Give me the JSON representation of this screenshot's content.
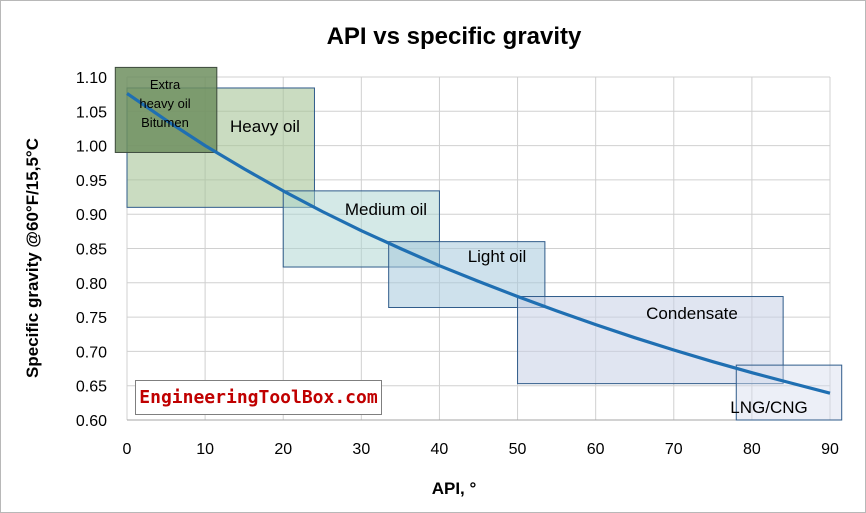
{
  "chart_data": {
    "type": "line",
    "title": "API vs specific gravity",
    "xlabel": "API, °",
    "ylabel": "Specific gravity @60°F/15,5°C",
    "xlim": [
      0,
      90
    ],
    "ylim": [
      0.6,
      1.1
    ],
    "xticks": [
      "0",
      "10",
      "20",
      "30",
      "40",
      "50",
      "60",
      "70",
      "80",
      "90"
    ],
    "yticks": [
      "0.60",
      "0.65",
      "0.70",
      "0.75",
      "0.80",
      "0.85",
      "0.90",
      "0.95",
      "1.00",
      "1.05",
      "1.10"
    ],
    "grid": true,
    "series": [
      {
        "x": [
          0,
          5,
          10,
          15,
          20,
          25,
          30,
          35,
          40,
          45,
          50,
          55,
          60,
          65,
          70,
          75,
          80,
          85,
          90
        ],
        "y": [
          1.076,
          1.037,
          1.0,
          0.966,
          0.934,
          0.904,
          0.876,
          0.85,
          0.825,
          0.802,
          0.78,
          0.759,
          0.739,
          0.72,
          0.702,
          0.685,
          0.669,
          0.654,
          0.639
        ]
      }
    ],
    "regions": [
      {
        "label": "Extra heavy oil Bitumen",
        "label_lines": [
          "Extra",
          "heavy oil",
          "Bitumen"
        ],
        "x": [
          -1.5,
          11.5
        ],
        "y": [
          0.99,
          1.114
        ]
      },
      {
        "label": "Heavy oil",
        "x": [
          0,
          24
        ],
        "y": [
          0.91,
          1.084
        ]
      },
      {
        "label": "Medium oil",
        "x": [
          20,
          40
        ],
        "y": [
          0.823,
          0.934
        ]
      },
      {
        "label": "Light oil",
        "x": [
          33.5,
          53.5
        ],
        "y": [
          0.764,
          0.86
        ]
      },
      {
        "label": "Condensate",
        "x": [
          50,
          84
        ],
        "y": [
          0.653,
          0.78
        ]
      },
      {
        "label": "LNG/CNG",
        "x": [
          78,
          91.5
        ],
        "y": [
          0.6,
          0.68
        ]
      }
    ],
    "colors": {
      "line": "#1f6fb2",
      "extra_heavy": "#6f8f5f",
      "heavy": "#a7c497",
      "medium": "#a9d4cf",
      "light": "#a6c9dc",
      "condensate": "#c7d0e6",
      "lng": "#d4dcee"
    }
  },
  "watermark": "EngineeringToolBox.com"
}
